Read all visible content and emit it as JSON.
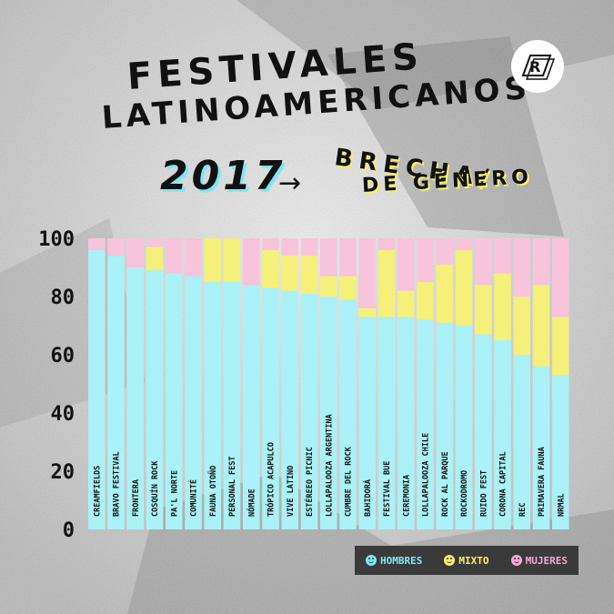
{
  "title": {
    "line1": "FESTIVALES",
    "line2": "LATINOAMERICANOS",
    "year": "2017",
    "arrow": "→",
    "subtitle1": "BRECHA/",
    "subtitle2": "DE GÉNERO"
  },
  "logo": {
    "icon": "rock-logo-icon",
    "letter": "R"
  },
  "colors": {
    "hombres": "#aaf2f7",
    "mixto": "#f5f07a",
    "mujeres": "#f7c4dc",
    "axis_text": "#111111",
    "legend_bg": "#3a3a3a"
  },
  "legend": [
    {
      "label": "HOMBRES",
      "color": "#7ee8f5"
    },
    {
      "label": "MIXTO",
      "color": "#f5ef6a"
    },
    {
      "label": "MUJERES",
      "color": "#f5a9d0"
    }
  ],
  "chart_data": {
    "type": "bar",
    "stacked": true,
    "ylim": [
      0,
      100
    ],
    "yticks": [
      "0",
      "20",
      "40",
      "60",
      "80",
      "100"
    ],
    "categories": [
      "CREAMFIELDS",
      "BRAVO FESTIVAL",
      "FRONTERA",
      "COSQUÍN ROCK",
      "PA'L NORTE",
      "COMUNITÉ",
      "FAUNA OTOÑO",
      "PERSONAL FEST",
      "NÓMADE",
      "TRÓPICO ACAPULCO",
      "VIVE LATINO",
      "ESTÉREEO PICNIC",
      "LOLLAPALOOZA ARGENTINA",
      "CUMBRE DEL ROCK",
      "BAHIDORÁ",
      "FESTIVAL BUE",
      "CEREMONIA",
      "LOLLAPALOOZA CHILE",
      "ROCK AL PARQUE",
      "ROCKODROMO",
      "RUIDO FEST",
      "CORONA CAPITAL",
      "REC",
      "PRIMAVERA FAUNA",
      "NRMAL"
    ],
    "series": [
      {
        "name": "HOMBRES",
        "values": [
          96,
          94,
          90,
          89,
          88,
          87,
          85,
          85,
          84,
          83,
          82,
          81,
          80,
          79,
          73,
          73,
          73,
          72,
          71,
          70,
          67,
          65,
          60,
          56,
          53
        ]
      },
      {
        "name": "MIXTO",
        "values": [
          0,
          0,
          0,
          8,
          0,
          0,
          15,
          15,
          0,
          13,
          12,
          13,
          7,
          8,
          3,
          23,
          9,
          13,
          20,
          26,
          17,
          23,
          20,
          28,
          20
        ]
      },
      {
        "name": "MUJERES",
        "values": [
          4,
          6,
          10,
          3,
          12,
          13,
          0,
          0,
          16,
          4,
          6,
          6,
          13,
          13,
          24,
          4,
          18,
          15,
          9,
          4,
          16,
          12,
          20,
          16,
          27
        ]
      }
    ]
  }
}
